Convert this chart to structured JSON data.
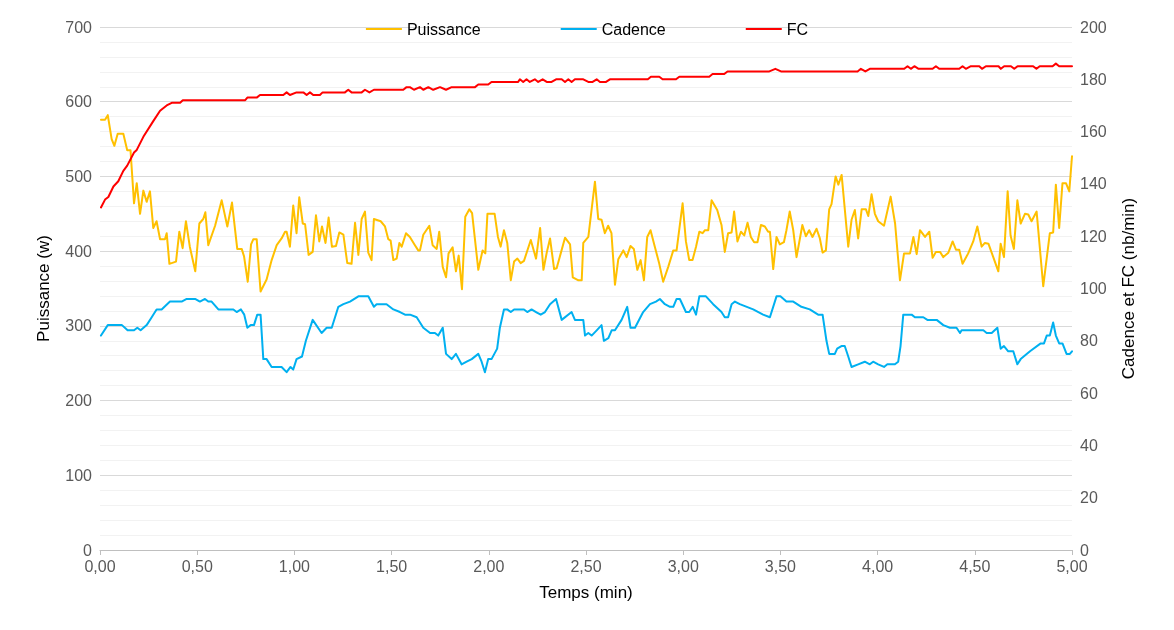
{
  "chart_data": {
    "type": "line",
    "xlabel": "Temps (min)",
    "ylabel": "Puissance (w)",
    "y2label": "Cadence et FC (nb/min)",
    "xlim": [
      0,
      5
    ],
    "xticks": [
      {
        "value": 0,
        "label": "0,00"
      },
      {
        "value": 0.5,
        "label": "0,50"
      },
      {
        "value": 1,
        "label": "1,00"
      },
      {
        "value": 1.5,
        "label": "1,50"
      },
      {
        "value": 2,
        "label": "2,00"
      },
      {
        "value": 2.5,
        "label": "2,50"
      },
      {
        "value": 3,
        "label": "3,00"
      },
      {
        "value": 3.5,
        "label": "3,50"
      },
      {
        "value": 4,
        "label": "4,00"
      },
      {
        "value": 4.5,
        "label": "4,50"
      },
      {
        "value": 5,
        "label": "5,00"
      }
    ],
    "ylim": [
      0,
      700
    ],
    "yticks": [
      0,
      100,
      200,
      300,
      400,
      500,
      600,
      700
    ],
    "y2lim": [
      0,
      200
    ],
    "y2ticks": [
      0,
      20,
      40,
      60,
      80,
      100,
      120,
      140,
      160,
      180,
      200
    ],
    "grid": "y",
    "legend": "top",
    "marker": "none",
    "line_style": "solid",
    "series": [
      {
        "name": "Puissance",
        "color": "#ffc000",
        "x": [
          0.005,
          0.026,
          0.04,
          0.06,
          0.074,
          0.091,
          0.12,
          0.14,
          0.157,
          0.175,
          0.189,
          0.206,
          0.223,
          0.24,
          0.257,
          0.274,
          0.291,
          0.309,
          0.334,
          0.343,
          0.357,
          0.391,
          0.408,
          0.425,
          0.442,
          0.462,
          0.49,
          0.511,
          0.531,
          0.542,
          0.557,
          0.592,
          0.626,
          0.655,
          0.679,
          0.706,
          0.729,
          0.741,
          0.76,
          0.777,
          0.789,
          0.806,
          0.826,
          0.857,
          0.883,
          0.909,
          0.934,
          0.952,
          0.96,
          0.977,
          0.994,
          1.011,
          1.025,
          1.043,
          1.055,
          1.073,
          1.094,
          1.111,
          1.128,
          1.142,
          1.16,
          1.176,
          1.193,
          1.214,
          1.231,
          1.252,
          1.272,
          1.294,
          1.312,
          1.329,
          1.346,
          1.363,
          1.38,
          1.397,
          1.409,
          1.444,
          1.466,
          1.483,
          1.495,
          1.509,
          1.526,
          1.54,
          1.552,
          1.574,
          1.594,
          1.62,
          1.637,
          1.646,
          1.663,
          1.694,
          1.711,
          1.732,
          1.745,
          1.763,
          1.78,
          1.793,
          1.814,
          1.831,
          1.845,
          1.862,
          1.879,
          1.9,
          1.914,
          1.946,
          1.968,
          1.982,
          1.993,
          2.03,
          2.047,
          2.061,
          2.078,
          2.095,
          2.113,
          2.13,
          2.147,
          2.164,
          2.181,
          2.216,
          2.243,
          2.264,
          2.281,
          2.298,
          2.315,
          2.336,
          2.349,
          2.37,
          2.392,
          2.418,
          2.432,
          2.461,
          2.478,
          2.486,
          2.512,
          2.546,
          2.563,
          2.58,
          2.597,
          2.614,
          2.631,
          2.649,
          2.666,
          2.692,
          2.709,
          2.729,
          2.746,
          2.764,
          2.781,
          2.798,
          2.815,
          2.832,
          2.854,
          2.877,
          2.897,
          2.923,
          2.949,
          2.966,
          2.997,
          3.014,
          3.031,
          3.048,
          3.066,
          3.083,
          3.1,
          3.112,
          3.129,
          3.146,
          3.175,
          3.197,
          3.214,
          3.231,
          3.249,
          3.262,
          3.279,
          3.297,
          3.314,
          3.331,
          3.348,
          3.365,
          3.382,
          3.4,
          3.42,
          3.437,
          3.446,
          3.463,
          3.48,
          3.497,
          3.518,
          3.531,
          3.548,
          3.566,
          3.583,
          3.613,
          3.631,
          3.648,
          3.665,
          3.686,
          3.703,
          3.717,
          3.734,
          3.751,
          3.763,
          3.784,
          3.798,
          3.815,
          3.849,
          3.866,
          3.883,
          3.9,
          3.918,
          3.94,
          3.952,
          3.969,
          3.986,
          4.003,
          4.033,
          4.067,
          4.09,
          4.115,
          4.136,
          4.167,
          4.184,
          4.201,
          4.218,
          4.244,
          4.266,
          4.283,
          4.3,
          4.321,
          4.338,
          4.364,
          4.386,
          4.403,
          4.42,
          4.437,
          4.466,
          4.492,
          4.513,
          4.535,
          4.552,
          4.57,
          4.595,
          4.621,
          4.633,
          4.65,
          4.669,
          4.684,
          4.701,
          4.719,
          4.736,
          4.758,
          4.775,
          4.792,
          4.818,
          4.852,
          4.886,
          4.903,
          4.917,
          4.934,
          4.951,
          4.969,
          4.986,
          5.0
        ],
        "values": [
          576,
          576,
          582,
          550,
          541,
          557,
          557,
          535,
          535,
          464,
          491,
          450,
          481,
          466,
          480,
          431,
          440,
          416,
          416,
          424,
          383,
          386,
          426,
          404,
          440,
          406,
          373,
          437,
          443,
          452,
          408,
          434,
          468,
          433,
          465,
          403,
          403,
          393,
          359,
          409,
          416,
          416,
          346,
          362,
          388,
          408,
          417,
          426,
          426,
          406,
          461,
          424,
          472,
          437,
          436,
          395,
          399,
          448,
          413,
          433,
          411,
          445,
          406,
          407,
          425,
          422,
          384,
          383,
          438,
          395,
          443,
          453,
          398,
          388,
          443,
          440,
          433,
          416,
          414,
          388,
          390,
          411,
          406,
          424,
          419,
          408,
          401,
          401,
          422,
          434,
          408,
          403,
          426,
          379,
          365,
          397,
          405,
          373,
          394,
          349,
          446,
          456,
          451,
          375,
          401,
          397,
          450,
          450,
          419,
          406,
          428,
          411,
          361,
          386,
          390,
          384,
          387,
          415,
          390,
          431,
          375,
          398,
          417,
          376,
          377,
          397,
          418,
          409,
          365,
          361,
          361,
          411,
          419,
          493,
          443,
          442,
          424,
          434,
          424,
          355,
          389,
          401,
          392,
          407,
          403,
          375,
          388,
          361,
          419,
          428,
          406,
          383,
          359,
          379,
          401,
          401,
          464,
          413,
          388,
          388,
          406,
          426,
          424,
          428,
          428,
          468,
          455,
          435,
          399,
          424,
          425,
          453,
          413,
          426,
          421,
          438,
          419,
          412,
          412,
          435,
          433,
          426,
          426,
          376,
          419,
          409,
          412,
          428,
          453,
          428,
          392,
          435,
          420,
          428,
          419,
          430,
          417,
          398,
          401,
          456,
          463,
          500,
          489,
          502,
          406,
          442,
          455,
          417,
          456,
          456,
          447,
          476,
          450,
          440,
          434,
          473,
          437,
          361,
          397,
          397,
          419,
          396,
          428,
          419,
          426,
          391,
          399,
          399,
          392,
          398,
          413,
          402,
          402,
          383,
          397,
          413,
          433,
          406,
          411,
          410,
          392,
          373,
          410,
          392,
          480,
          421,
          403,
          468,
          437,
          450,
          449,
          440,
          453,
          353,
          424,
          425,
          489,
          431,
          491,
          491,
          480,
          527
        ]
      },
      {
        "name": "Cadence",
        "color": "#00b0f0",
        "axis": "y2",
        "x": [
          0.005,
          0.04,
          0.113,
          0.142,
          0.175,
          0.192,
          0.209,
          0.24,
          0.266,
          0.291,
          0.317,
          0.36,
          0.42,
          0.446,
          0.489,
          0.514,
          0.54,
          0.557,
          0.574,
          0.609,
          0.686,
          0.703,
          0.725,
          0.742,
          0.758,
          0.775,
          0.792,
          0.809,
          0.826,
          0.84,
          0.857,
          0.883,
          0.934,
          0.96,
          0.98,
          0.994,
          1.011,
          1.039,
          1.059,
          1.094,
          1.14,
          1.166,
          1.192,
          1.226,
          1.252,
          1.286,
          1.329,
          1.38,
          1.409,
          1.423,
          1.474,
          1.509,
          1.543,
          1.569,
          1.595,
          1.629,
          1.663,
          1.698,
          1.723,
          1.74,
          1.763,
          1.78,
          1.809,
          1.831,
          1.86,
          1.886,
          1.912,
          1.946,
          1.963,
          1.98,
          1.997,
          2.014,
          2.043,
          2.057,
          2.078,
          2.095,
          2.113,
          2.13,
          2.181,
          2.198,
          2.22,
          2.243,
          2.267,
          2.289,
          2.315,
          2.346,
          2.375,
          2.426,
          2.443,
          2.469,
          2.486,
          2.495,
          2.512,
          2.529,
          2.555,
          2.58,
          2.592,
          2.615,
          2.632,
          2.649,
          2.683,
          2.712,
          2.729,
          2.752,
          2.794,
          2.829,
          2.86,
          2.88,
          2.906,
          2.932,
          2.949,
          2.966,
          2.983,
          3.014,
          3.031,
          3.049,
          3.066,
          3.083,
          3.117,
          3.154,
          3.197,
          3.214,
          3.231,
          3.249,
          3.266,
          3.291,
          3.36,
          3.411,
          3.446,
          3.48,
          3.5,
          3.531,
          3.566,
          3.608,
          3.651,
          3.694,
          3.717,
          3.737,
          3.751,
          3.78,
          3.792,
          3.814,
          3.831,
          3.849,
          3.866,
          3.9,
          3.934,
          3.96,
          3.977,
          4.003,
          4.033,
          4.05,
          4.089,
          4.106,
          4.118,
          4.132,
          4.175,
          4.192,
          4.235,
          4.256,
          4.304,
          4.338,
          4.372,
          4.406,
          4.424,
          4.432,
          4.544,
          4.561,
          4.587,
          4.616,
          4.633,
          4.65,
          4.672,
          4.698,
          4.719,
          4.736,
          4.784,
          4.839,
          4.856,
          4.87,
          4.886,
          4.903,
          4.917,
          4.934,
          4.951,
          4.972,
          4.989,
          5.0
        ],
        "values": [
          82,
          86,
          86,
          84,
          84,
          85,
          84,
          86,
          89,
          92,
          92,
          95,
          95,
          96,
          96,
          95,
          96,
          95,
          95,
          92,
          92,
          91,
          92,
          90,
          85,
          86,
          86,
          90,
          90,
          73,
          73,
          70,
          70,
          68,
          70,
          69,
          73,
          74,
          80,
          88,
          83,
          85,
          85,
          93,
          94,
          95,
          97,
          97,
          93,
          94,
          94,
          92,
          91,
          90,
          90,
          89,
          85,
          83,
          83,
          82,
          85,
          75,
          73,
          75,
          71,
          72,
          73,
          75,
          72,
          68,
          73,
          73,
          77,
          85,
          92,
          92,
          91,
          92,
          92,
          91,
          92,
          91,
          90,
          91,
          94,
          96,
          88,
          91,
          88,
          88,
          88,
          82,
          83,
          82,
          84,
          86,
          80,
          81,
          84,
          84,
          88,
          93,
          85,
          85,
          91,
          94,
          95,
          96,
          94,
          93,
          93,
          96,
          96,
          91,
          91,
          93,
          90,
          97,
          97,
          94,
          91,
          89,
          89,
          94,
          95,
          94,
          92,
          90,
          89,
          97,
          97,
          95,
          95,
          93,
          92,
          90,
          90,
          80,
          75,
          75,
          77,
          78,
          78,
          74,
          70,
          71,
          72,
          71,
          72,
          71,
          70,
          71,
          71,
          72,
          78,
          90,
          90,
          89,
          89,
          88,
          88,
          86,
          85,
          85,
          83,
          84,
          84,
          83,
          83,
          85,
          77,
          78,
          76,
          76,
          71,
          73,
          76,
          79,
          79,
          82,
          82,
          87,
          82,
          79,
          79,
          75,
          75,
          76
        ]
      },
      {
        "name": "FC",
        "color": "#ff0000",
        "axis": "y2",
        "x": [
          0.005,
          0.026,
          0.043,
          0.069,
          0.094,
          0.12,
          0.14,
          0.175,
          0.189,
          0.223,
          0.274,
          0.309,
          0.343,
          0.369,
          0.412,
          0.426,
          0.747,
          0.758,
          0.806,
          0.823,
          0.943,
          0.96,
          0.977,
          1.011,
          1.046,
          1.063,
          1.08,
          1.097,
          1.131,
          1.145,
          1.26,
          1.277,
          1.294,
          1.346,
          1.363,
          1.386,
          1.409,
          1.56,
          1.577,
          1.594,
          1.615,
          1.646,
          1.663,
          1.689,
          1.714,
          1.749,
          1.78,
          1.809,
          1.929,
          1.946,
          1.997,
          2.014,
          2.151,
          2.16,
          2.177,
          2.194,
          2.211,
          2.237,
          2.254,
          2.277,
          2.298,
          2.323,
          2.346,
          2.375,
          2.392,
          2.409,
          2.426,
          2.443,
          2.461,
          2.486,
          2.512,
          2.534,
          2.555,
          2.572,
          2.603,
          2.623,
          2.818,
          2.834,
          2.877,
          2.894,
          2.963,
          2.98,
          3.134,
          3.151,
          3.211,
          3.228,
          3.443,
          3.474,
          3.503,
          3.897,
          3.914,
          3.937,
          3.96,
          4.137,
          4.154,
          4.171,
          4.189,
          4.211,
          4.283,
          4.3,
          4.317,
          4.42,
          4.437,
          4.454,
          4.48,
          4.523,
          4.537,
          4.557,
          4.622,
          4.634,
          4.651,
          4.686,
          4.703,
          4.72,
          4.8,
          4.817,
          4.834,
          4.9,
          4.917,
          4.934,
          5.0
        ],
        "values": [
          131,
          134,
          135,
          139,
          141,
          145,
          147,
          152,
          153,
          158,
          164,
          168,
          170,
          171,
          171,
          172,
          172,
          173,
          173,
          174,
          174,
          175,
          174,
          175,
          175,
          174,
          175,
          174,
          174,
          175,
          175,
          176,
          175,
          175,
          176,
          175,
          176,
          176,
          177,
          177,
          176,
          177,
          176,
          177,
          176,
          177,
          176,
          177,
          177,
          178,
          178,
          179,
          179,
          180,
          179,
          180,
          179,
          180,
          179,
          180,
          179,
          179,
          180,
          180,
          179,
          180,
          179,
          180,
          180,
          180,
          179,
          179,
          180,
          179,
          179,
          180,
          180,
          181,
          181,
          180,
          180,
          181,
          181,
          182,
          182,
          183,
          183,
          184,
          183,
          183,
          184,
          183,
          184,
          184,
          185,
          184,
          185,
          184,
          184,
          185,
          184,
          184,
          185,
          184,
          185,
          185,
          184,
          185,
          185,
          184,
          185,
          185,
          184,
          185,
          185,
          184,
          185,
          185,
          186,
          185,
          185
        ]
      }
    ]
  }
}
